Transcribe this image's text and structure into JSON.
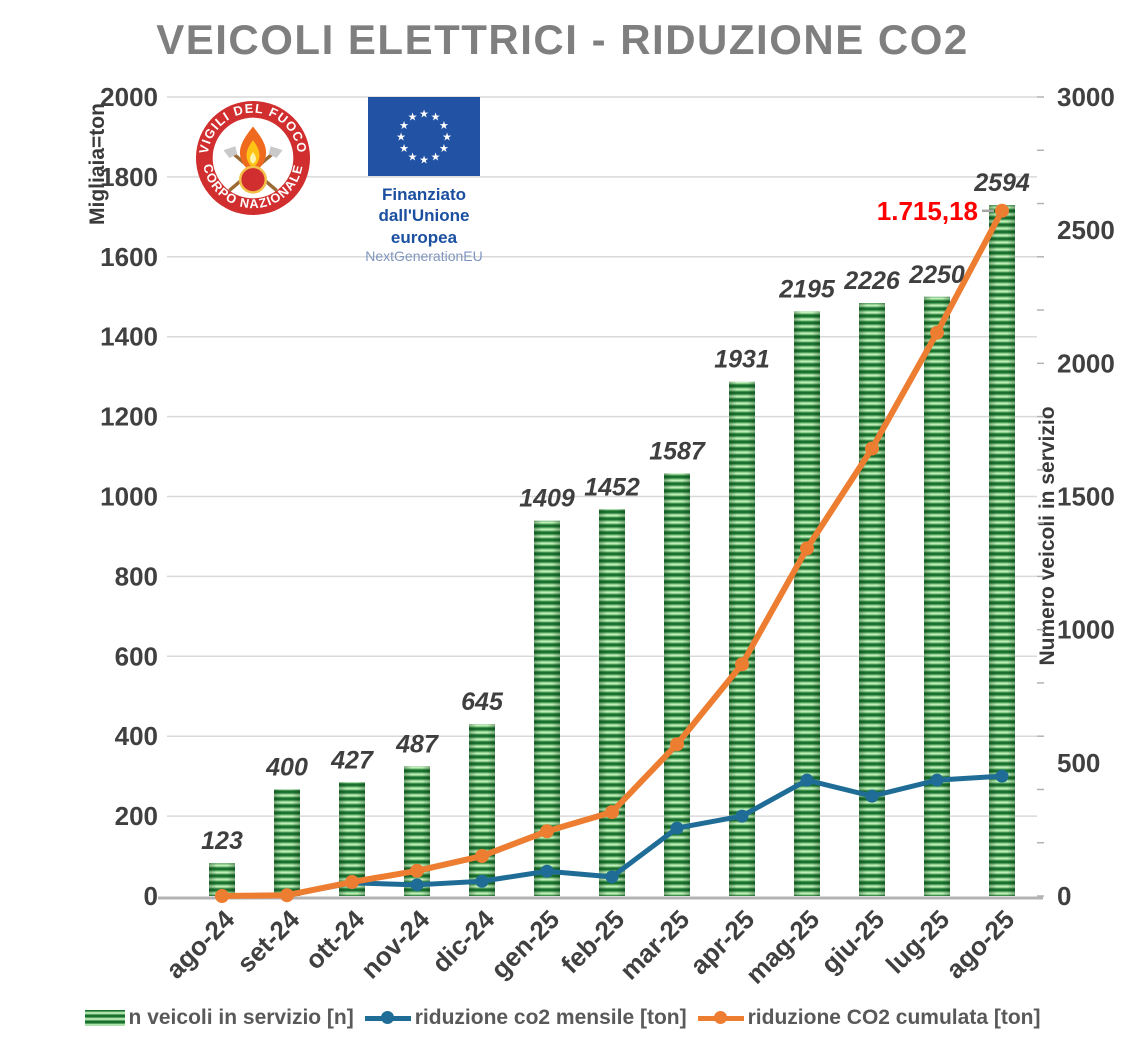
{
  "title": "VEICOLI ELETTRICI - RIDUZIONE CO2",
  "logos": {
    "vvf": {
      "ring_top": "VIGILI DEL FUOCO",
      "ring_bottom": "CORPO NAZIONALE"
    },
    "eu": {
      "line1": "Finanziato",
      "line2": "dall'Unione europea",
      "line3": "NextGenerationEU"
    }
  },
  "colors": {
    "title_text": "#7f7f7f",
    "bar_stripe_dark": "#19702f",
    "bar_stripe_light": "#d2f2c8",
    "line_mensile": "#1f6d96",
    "line_cumulata": "#ed7d31",
    "data_label": "#3f3f3f",
    "annotation_red": "#ff0000",
    "grid": "#d9d9d9"
  },
  "chart_data": {
    "type": "bar",
    "subtype": "combo-bar-and-lines",
    "categories": [
      "ago-24",
      "set-24",
      "ott-24",
      "nov-24",
      "dic-24",
      "gen-25",
      "feb-25",
      "mar-25",
      "apr-25",
      "mag-25",
      "giu-25",
      "lug-25",
      "ago-25"
    ],
    "series": [
      {
        "name": "n veicoli in servizio [n]",
        "chart_type": "bar",
        "axis": "right",
        "values": [
          123,
          400,
          427,
          487,
          645,
          1409,
          1452,
          1587,
          1931,
          2195,
          2226,
          2250,
          2594
        ],
        "data_labels": [
          "123",
          "400",
          "427",
          "487",
          "645",
          "1409",
          "1452",
          "1587",
          "1931",
          "2195",
          "2226",
          "2250",
          "2594"
        ]
      },
      {
        "name": "riduzione co2 mensile [ton]",
        "chart_type": "line",
        "axis": "left",
        "color": "#1f6d96",
        "values": [
          0,
          2,
          33,
          28,
          37,
          62,
          48,
          170,
          200,
          290,
          250,
          290,
          300
        ]
      },
      {
        "name": "riduzione CO2 cumulata [ton]",
        "chart_type": "line",
        "axis": "left",
        "color": "#ed7d31",
        "values": [
          0,
          2,
          35,
          63,
          100,
          162,
          210,
          380,
          580,
          870,
          1120,
          1410,
          1715.18
        ],
        "last_point_label": "1.715,18",
        "last_point_label_color": "#ff0000"
      }
    ],
    "left_axis": {
      "title": "Migliaia=ton",
      "min": 0,
      "max": 2000,
      "step": 200,
      "tick_labels": [
        "0",
        "200",
        "400",
        "600",
        "800",
        "1000",
        "1200",
        "1400",
        "1600",
        "1800",
        "2000"
      ]
    },
    "right_axis": {
      "title": "Numero veicoli in servizio",
      "min": 0,
      "max": 3000,
      "step": 500,
      "tick_labels": [
        "0",
        "500",
        "1000",
        "1500",
        "2000",
        "2500",
        "3000"
      ]
    },
    "grid": true,
    "legend_position": "bottom"
  },
  "legend": {
    "items": [
      {
        "label": "n veicoli in servizio [n]",
        "swatch": "green-striped-bar"
      },
      {
        "label": "riduzione co2 mensile [ton]",
        "swatch": "teal-line-marker"
      },
      {
        "label": "riduzione CO2 cumulata [ton]",
        "swatch": "orange-line-marker"
      }
    ]
  }
}
